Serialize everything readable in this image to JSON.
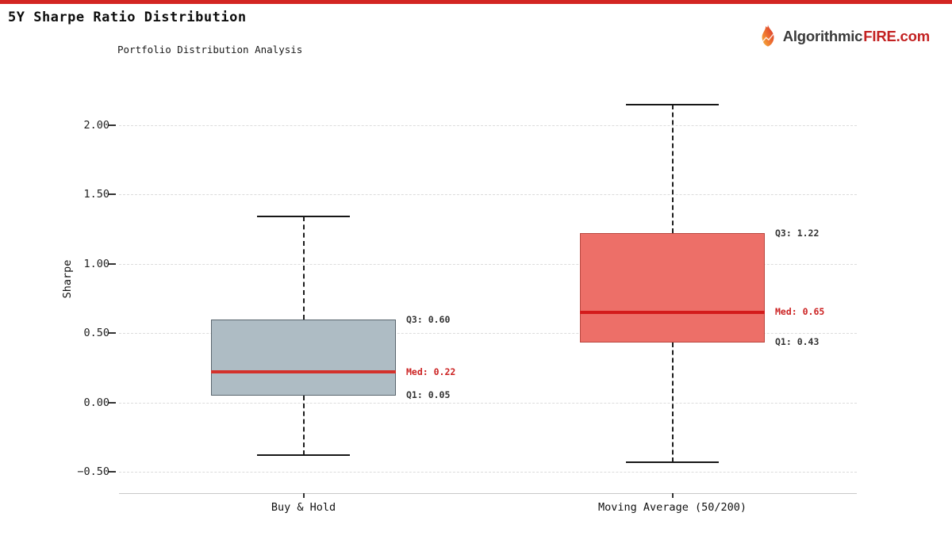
{
  "page": {
    "title": "5Y Sharpe Ratio Distribution",
    "subtitle": "Portfolio Distribution Analysis",
    "top_bar_color": "#d32522",
    "brand": {
      "icon": "flame-icon",
      "name_left": "Algorithmic",
      "name_right": "FIRE.com",
      "color_left": "#3a3a3a",
      "color_right": "#c32222"
    }
  },
  "chart_data": {
    "type": "boxplot",
    "title": "5Y Sharpe Ratio Distribution",
    "subtitle": "Portfolio Distribution Analysis",
    "xlabel": "",
    "ylabel": "Sharpe",
    "ylim": [
      -0.65,
      2.33
    ],
    "grid": "horizontal dashed",
    "legend": "none",
    "yticks": [
      2.0,
      1.5,
      1.0,
      0.5,
      0.0,
      -0.5
    ],
    "ytick_labels": [
      "2.00",
      "1.50",
      "1.00",
      "0.50",
      "0.00",
      "−0.50"
    ],
    "categories": [
      "Buy & Hold",
      "Moving Average (50/200)"
    ],
    "series": [
      {
        "name": "Buy & Hold",
        "whisker_low": -0.38,
        "q1": 0.05,
        "median": 0.22,
        "q3": 0.6,
        "whisker_high": 1.34,
        "box_fill": "#aebcc4",
        "box_border": "#59656d",
        "median_color": "#d3312b",
        "labels": {
          "q3": "Q3: 0.60",
          "median": "Med: 0.22",
          "q1": "Q1: 0.05"
        },
        "median_label_color": "#cc2222",
        "quartile_label_color": "#333333"
      },
      {
        "name": "Moving Average (50/200)",
        "whisker_low": -0.43,
        "q1": 0.43,
        "median": 0.65,
        "q3": 1.22,
        "whisker_high": 2.15,
        "box_fill": "#ed6f68",
        "box_border": "#b9463e",
        "median_color": "#d31b1b",
        "labels": {
          "q3": "Q3: 1.22",
          "median": "Med: 0.65",
          "q1": "Q1: 0.43"
        },
        "median_label_color": "#cc2222",
        "quartile_label_color": "#333333"
      }
    ]
  }
}
